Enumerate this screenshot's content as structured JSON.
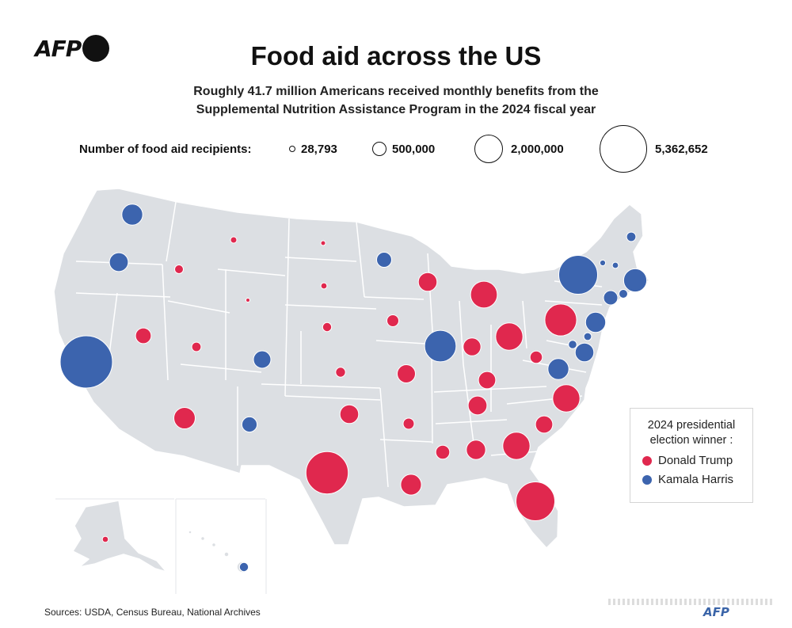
{
  "header": {
    "logo_text": "AFP",
    "title": "Food aid across the US",
    "subtitle_line1": "Roughly 41.7 million Americans received monthly benefits from the",
    "subtitle_line2": "Supplemental Nutrition Assistance Program in the 2024 fiscal year"
  },
  "size_legend": {
    "label": "Number of food aid recipients:",
    "items": [
      {
        "label": "28,793",
        "value": 28793
      },
      {
        "label": "500,000",
        "value": 500000
      },
      {
        "label": "2,000,000",
        "value": 2000000
      },
      {
        "label": "5,362,652",
        "value": 5362652
      }
    ]
  },
  "colors": {
    "trump": "#e0284e",
    "harris": "#3c64ae",
    "land": "#dcdfe3",
    "border": "#ffffff"
  },
  "winner_legend": {
    "title_line1": "2024 presidential",
    "title_line2": "election winner :",
    "trump_label": "Donald Trump",
    "harris_label": "Kamala Harris"
  },
  "states": [
    {
      "state": "WA",
      "winner": "harris",
      "recipients": 860000
    },
    {
      "state": "OR",
      "winner": "harris",
      "recipients": 700000
    },
    {
      "state": "CA",
      "winner": "harris",
      "recipients": 5362652
    },
    {
      "state": "NV",
      "winner": "trump",
      "recipients": 480000
    },
    {
      "state": "ID",
      "winner": "trump",
      "recipients": 150000
    },
    {
      "state": "MT",
      "winner": "trump",
      "recipients": 80000
    },
    {
      "state": "WY",
      "winner": "trump",
      "recipients": 28793
    },
    {
      "state": "UT",
      "winner": "trump",
      "recipients": 170000
    },
    {
      "state": "AZ",
      "winner": "trump",
      "recipients": 900000
    },
    {
      "state": "CO",
      "winner": "harris",
      "recipients": 600000
    },
    {
      "state": "NM",
      "winner": "harris",
      "recipients": 450000
    },
    {
      "state": "ND",
      "winner": "trump",
      "recipients": 45000
    },
    {
      "state": "SD",
      "winner": "trump",
      "recipients": 75000
    },
    {
      "state": "NE",
      "winner": "trump",
      "recipients": 160000
    },
    {
      "state": "KS",
      "winner": "trump",
      "recipients": 190000
    },
    {
      "state": "OK",
      "winner": "trump",
      "recipients": 680000
    },
    {
      "state": "TX",
      "winner": "trump",
      "recipients": 3500000
    },
    {
      "state": "MN",
      "winner": "harris",
      "recipients": 440000
    },
    {
      "state": "IA",
      "winner": "trump",
      "recipients": 280000
    },
    {
      "state": "MO",
      "winner": "trump",
      "recipients": 650000
    },
    {
      "state": "AR",
      "winner": "trump",
      "recipients": 240000
    },
    {
      "state": "LA",
      "winner": "trump",
      "recipients": 840000
    },
    {
      "state": "WI",
      "winner": "trump",
      "recipients": 690000
    },
    {
      "state": "IL",
      "winner": "harris",
      "recipients": 1950000
    },
    {
      "state": "MS",
      "winner": "trump",
      "recipients": 380000
    },
    {
      "state": "MI",
      "winner": "trump",
      "recipients": 1400000
    },
    {
      "state": "IN",
      "winner": "trump",
      "recipients": 620000
    },
    {
      "state": "KY",
      "winner": "trump",
      "recipients": 580000
    },
    {
      "state": "TN",
      "winner": "trump",
      "recipients": 700000
    },
    {
      "state": "AL",
      "winner": "trump",
      "recipients": 730000
    },
    {
      "state": "OH",
      "winner": "trump",
      "recipients": 1450000
    },
    {
      "state": "WV",
      "winner": "trump",
      "recipients": 300000
    },
    {
      "state": "GA",
      "winner": "trump",
      "recipients": 1450000
    },
    {
      "state": "FL",
      "winner": "trump",
      "recipients": 2950000
    },
    {
      "state": "SC",
      "winner": "trump",
      "recipients": 580000
    },
    {
      "state": "NC",
      "winner": "trump",
      "recipients": 1450000
    },
    {
      "state": "VA",
      "winner": "harris",
      "recipients": 860000
    },
    {
      "state": "PA",
      "winner": "trump",
      "recipients": 1990000
    },
    {
      "state": "NY",
      "winner": "harris",
      "recipients": 2950000
    },
    {
      "state": "NJ",
      "winner": "harris",
      "recipients": 800000
    },
    {
      "state": "DE",
      "winner": "harris",
      "recipients": 120000
    },
    {
      "state": "MD",
      "winner": "harris",
      "recipients": 680000
    },
    {
      "state": "DC",
      "winner": "harris",
      "recipients": 140000
    },
    {
      "state": "CT",
      "winner": "harris",
      "recipients": 400000
    },
    {
      "state": "RI",
      "winner": "harris",
      "recipients": 150000
    },
    {
      "state": "MA",
      "winner": "harris",
      "recipients": 1050000
    },
    {
      "state": "VT",
      "winner": "harris",
      "recipients": 65000
    },
    {
      "state": "NH",
      "winner": "harris",
      "recipients": 75000
    },
    {
      "state": "ME",
      "winner": "harris",
      "recipients": 170000
    },
    {
      "state": "AK",
      "winner": "trump",
      "recipients": 70000
    },
    {
      "state": "HI",
      "winner": "harris",
      "recipients": 160000
    }
  ],
  "footer": {
    "source": "Sources: USDA, Census Bureau, National Archives",
    "watermark": "AFP"
  }
}
